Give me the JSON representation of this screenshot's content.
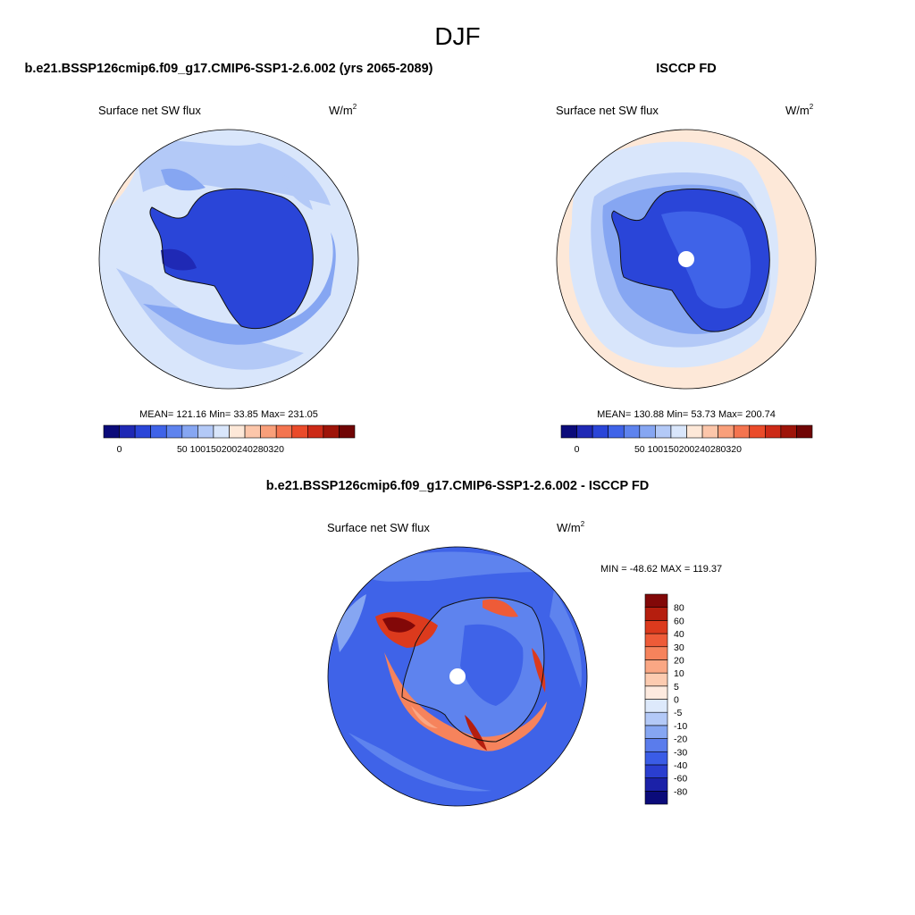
{
  "page": {
    "season_title": "DJF",
    "units": {
      "base": "W/m",
      "exponent": "2"
    }
  },
  "panels": [
    {
      "id": "model",
      "title": "b.e21.BSSP126cmip6.f09_g17.CMIP6-SSP1-2.6.002 (yrs 2065-2089)",
      "variable": "Surface net SW flux",
      "stats": {
        "mean_label": "MEAN=",
        "mean": "121.16",
        "min_label": "Min=",
        "min": "33.85",
        "max_label": "Max=",
        "max": "231.05"
      }
    },
    {
      "id": "obs",
      "title": "ISCCP FD",
      "variable": "Surface net SW flux",
      "stats": {
        "mean_label": "MEAN=",
        "mean": "130.88",
        "min_label": "Min=",
        "min": "53.73",
        "max_label": "Max=",
        "max": "200.74"
      }
    },
    {
      "id": "diff",
      "title": "b.e21.BSSP126cmip6.f09_g17.CMIP6-SSP1-2.6.002 - ISCCP FD",
      "variable": "Surface net SW flux",
      "minmax_text": "MIN = -48.62 MAX = 119.37"
    }
  ],
  "colorbar_abs": {
    "colors": [
      "#0b0b7a",
      "#1f29b5",
      "#2a45d8",
      "#3f63e8",
      "#5e83ee",
      "#86a6f2",
      "#b3c9f7",
      "#d9e6fb",
      "#fde8d8",
      "#fcc6aa",
      "#f99f7a",
      "#f4744f",
      "#ea4b2a",
      "#cc2a17",
      "#9e1409",
      "#700505"
    ],
    "labels": [
      "0",
      "50",
      "100",
      "150",
      "200",
      "240",
      "280",
      "320"
    ]
  },
  "colorbar_diff": {
    "colors": [
      "#0b0b7a",
      "#1b21a8",
      "#2a3ed0",
      "#3a5ce6",
      "#5a7cec",
      "#86a6f2",
      "#b3c9f7",
      "#dde9fb",
      "#fdeadf",
      "#fccbb0",
      "#faa784",
      "#f6835c",
      "#ee5b38",
      "#dc3a1d",
      "#b51e0e",
      "#820808"
    ],
    "labels": [
      "-80",
      "-60",
      "-40",
      "-30",
      "-20",
      "-10",
      "-5",
      "0",
      "5",
      "10",
      "20",
      "30",
      "40",
      "60",
      "80"
    ]
  }
}
